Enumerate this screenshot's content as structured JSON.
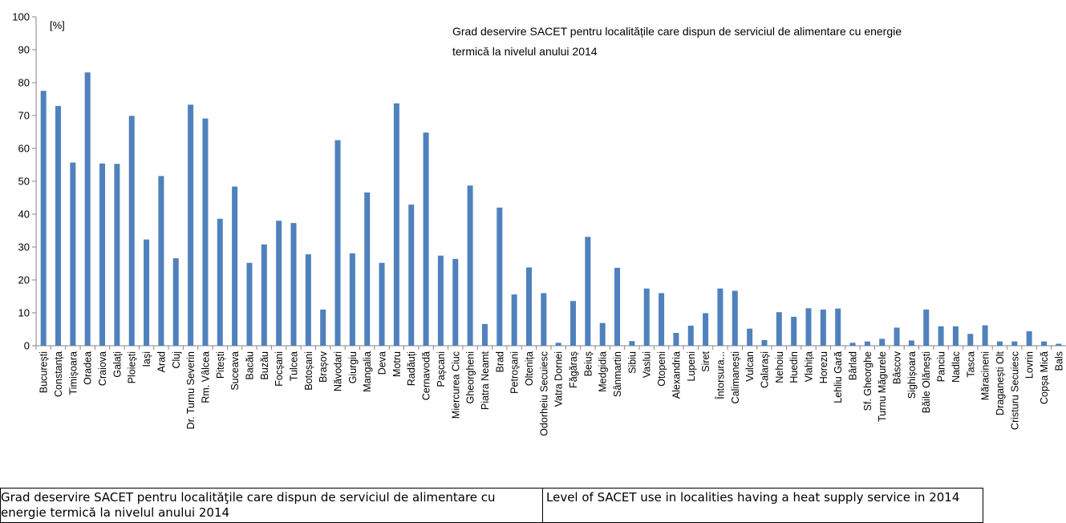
{
  "chart_data": {
    "type": "bar",
    "title": "Grad deservire SACET pentru localitățile care dispun de serviciul de alimentare cu energie termică la nivelul anului 2014",
    "title_lines": [
      "Grad deservire SACET pentru localitățile care dispun de serviciul de alimentare cu energie",
      "termică la nivelul anului 2014"
    ],
    "ylabel": "[%]",
    "xlabel": "",
    "ylim": [
      0,
      100
    ],
    "yticks": [
      0,
      10,
      20,
      30,
      40,
      50,
      60,
      70,
      80,
      90,
      100
    ],
    "grid": false,
    "legend": "none",
    "bar_color": "#4f81bd",
    "categories": [
      "București",
      "Constanța",
      "Timișoara",
      "Oradea",
      "Craiova",
      "Galați",
      "Ploiești",
      "Iași",
      "Arad",
      "Cluj",
      "Dr. Turnu Severin",
      "Rm. Vâlcea",
      "Pitești",
      "Suceava",
      "Bacău",
      "Buzău",
      "Focșani",
      "Tulcea",
      "Botoșani",
      "Brașov",
      "Năvodari",
      "Giurgiu",
      "Mangalia",
      "Deva",
      "Motru",
      "Radăuți",
      "Cernavodă",
      "Pașcani",
      "Miercurea Ciuc",
      "Gheorgheni",
      "Piatra Neamt",
      "Brad",
      "Petroșani",
      "Oltenița",
      "Odorheiu Secuiesc",
      "Vatra Dornei",
      "Făgăraș",
      "Beiuș",
      "Medgidia",
      "Sânmartin",
      "Sibiu",
      "Vaslui",
      "Otopeni",
      "Alexandria",
      "Lupeni",
      "Siret",
      "Întorsura...",
      "Calimanești",
      "Vulcan",
      "Calarași",
      "Nehoiu",
      "Huedin",
      "Vlahița",
      "Horezu",
      "Lehliu Gară",
      "Bârlad",
      "Sf. Gheorghe",
      "Turnu Măgurele",
      "Bâscov",
      "Sighișoara",
      "Băile Olănești",
      "Panciu",
      "Nadlac",
      "Tasca",
      "Măracineni",
      "Draganești Olt",
      "Cristuru Secuiesc",
      "Lovrin",
      "Copșa Mică",
      "Bals"
    ],
    "values": [
      77.5,
      72.9,
      55.7,
      83.1,
      55.4,
      55.3,
      69.9,
      32.3,
      51.6,
      26.6,
      73.3,
      69.1,
      38.6,
      48.4,
      25.2,
      30.8,
      38.0,
      37.3,
      27.8,
      11.0,
      62.5,
      28.1,
      46.6,
      25.2,
      73.7,
      42.9,
      64.8,
      27.4,
      26.4,
      48.7,
      6.6,
      42.0,
      15.6,
      23.8,
      16.0,
      0.9,
      13.6,
      33.1,
      6.9,
      23.7,
      1.4,
      17.4,
      16.0,
      3.9,
      6.1,
      9.9,
      17.4,
      16.7,
      5.2,
      1.7,
      10.2,
      8.8,
      11.4,
      11.0,
      11.3,
      0.9,
      1.3,
      2.1,
      5.5,
      1.6,
      11.0,
      5.9,
      5.9,
      3.6,
      6.2,
      1.3,
      1.3,
      4.4,
      1.3,
      0.6
    ]
  },
  "caption": {
    "left": "Grad deservire SACET pentru localităţile care dispun de serviciul de alimentare cu energie termică la nivelul anului 2014",
    "right": "Level of SACET use in localities having a heat supply service in 2014"
  }
}
